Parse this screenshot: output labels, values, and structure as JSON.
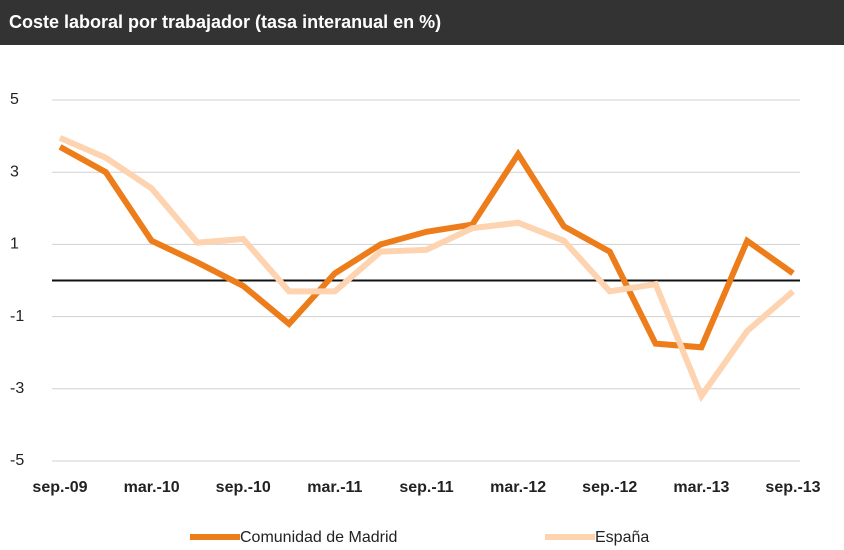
{
  "chart_data": {
    "type": "line",
    "title": "Coste laboral por trabajador (tasa interanual en %)",
    "categories": [
      "sep.-09",
      null,
      "mar.-10",
      null,
      "sep.-10",
      null,
      "mar.-11",
      null,
      "sep.-11",
      null,
      "mar.-12",
      null,
      "sep.-12",
      null,
      "mar.-13",
      null,
      "sep.-13"
    ],
    "series": [
      {
        "name": "Comunidad de Madrid",
        "color": "#ed7d1a",
        "values": [
          3.7,
          3.0,
          1.1,
          0.5,
          -0.15,
          -1.2,
          0.2,
          1.0,
          1.35,
          1.55,
          3.5,
          1.5,
          0.8,
          -1.75,
          -1.85,
          1.1,
          0.2
        ]
      },
      {
        "name": "España",
        "color": "#fdd3b0",
        "values": [
          3.95,
          3.4,
          2.55,
          1.05,
          1.15,
          -0.3,
          -0.3,
          0.8,
          0.85,
          1.45,
          1.6,
          1.1,
          -0.3,
          -0.1,
          -3.2,
          -1.4,
          -0.3
        ]
      }
    ],
    "ylim": [
      -5,
      5
    ],
    "yticks": [
      5,
      3,
      1,
      -1,
      -3,
      -5
    ],
    "grid": true
  }
}
